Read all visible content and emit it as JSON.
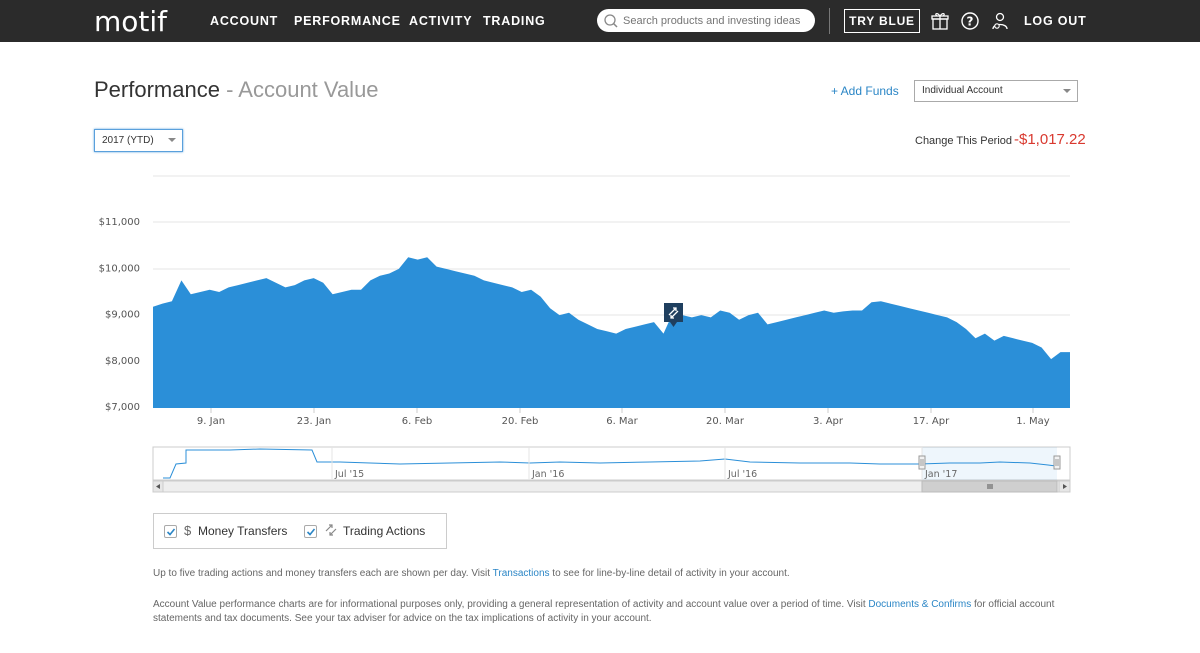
{
  "nav": {
    "logo": "motif",
    "items": [
      "ACCOUNT",
      "PERFORMANCE",
      "ACTIVITY",
      "TRADING"
    ],
    "search_placeholder": "Search products and investing ideas",
    "try_blue": "TRY BLUE",
    "logout": "LOG OUT"
  },
  "header": {
    "title": "Performance",
    "separator": " - ",
    "subtitle": "Account Value",
    "add_funds": "+ Add Funds",
    "account_select": "Individual Account",
    "period_select": "2017 (YTD)",
    "change_label": "Change This Period",
    "change_value": "-$1,017.22"
  },
  "chart_data": {
    "type": "area",
    "color": "#2b8fd8",
    "y_ticks": [
      "$11,000",
      "$10,000",
      "$9,000",
      "$8,000",
      "$7,000"
    ],
    "x_ticks": [
      "9. Jan",
      "23. Jan",
      "6. Feb",
      "20. Feb",
      "6. Mar",
      "20. Mar",
      "3. Apr",
      "17. Apr",
      "1. May"
    ],
    "ylim": [
      7000,
      11000
    ],
    "values": [
      9080,
      9150,
      9200,
      9650,
      9350,
      9400,
      9450,
      9400,
      9500,
      9550,
      9600,
      9650,
      9700,
      9600,
      9500,
      9550,
      9650,
      9700,
      9600,
      9350,
      9400,
      9450,
      9450,
      9650,
      9750,
      9800,
      9900,
      10150,
      10100,
      10150,
      9950,
      9900,
      9850,
      9800,
      9750,
      9650,
      9600,
      9550,
      9500,
      9400,
      9450,
      9300,
      9050,
      8900,
      8950,
      8800,
      8700,
      8600,
      8550,
      8500,
      8600,
      8650,
      8700,
      8750,
      8500,
      8950,
      8900,
      8850,
      8900,
      8850,
      9000,
      8950,
      8800,
      8900,
      8950,
      8700,
      8750,
      8800,
      8850,
      8900,
      8950,
      9000,
      8950,
      8980,
      9000,
      9000,
      9180,
      9200,
      9150,
      9100,
      9050,
      9000,
      8950,
      8900,
      8850,
      8750,
      8600,
      8400,
      8500,
      8350,
      8450,
      8400,
      8350,
      8300,
      8200,
      7950,
      8100,
      8100
    ],
    "marker_icon": "trading-action-icon",
    "navigator_ticks": [
      "Jul '15",
      "Jan '16",
      "Jul '16",
      "Jan '17"
    ]
  },
  "legend": {
    "money_transfers": "Money Transfers",
    "trading_actions": "Trading Actions"
  },
  "notes": {
    "line1_pre": "Up to five trading actions and money transfers each are shown per day. Visit ",
    "line1_link": "Transactions",
    "line1_post": " to see for line-by-line detail of activity in your account.",
    "line2_pre": "Account Value performance charts are for informational purposes only, providing a general representation of activity and account value over a period of time. Visit ",
    "line2_link": "Documents & Confirms",
    "line2_post": " for official account statements and tax documents. See your tax adviser for advice on the tax implications of activity in your account."
  }
}
